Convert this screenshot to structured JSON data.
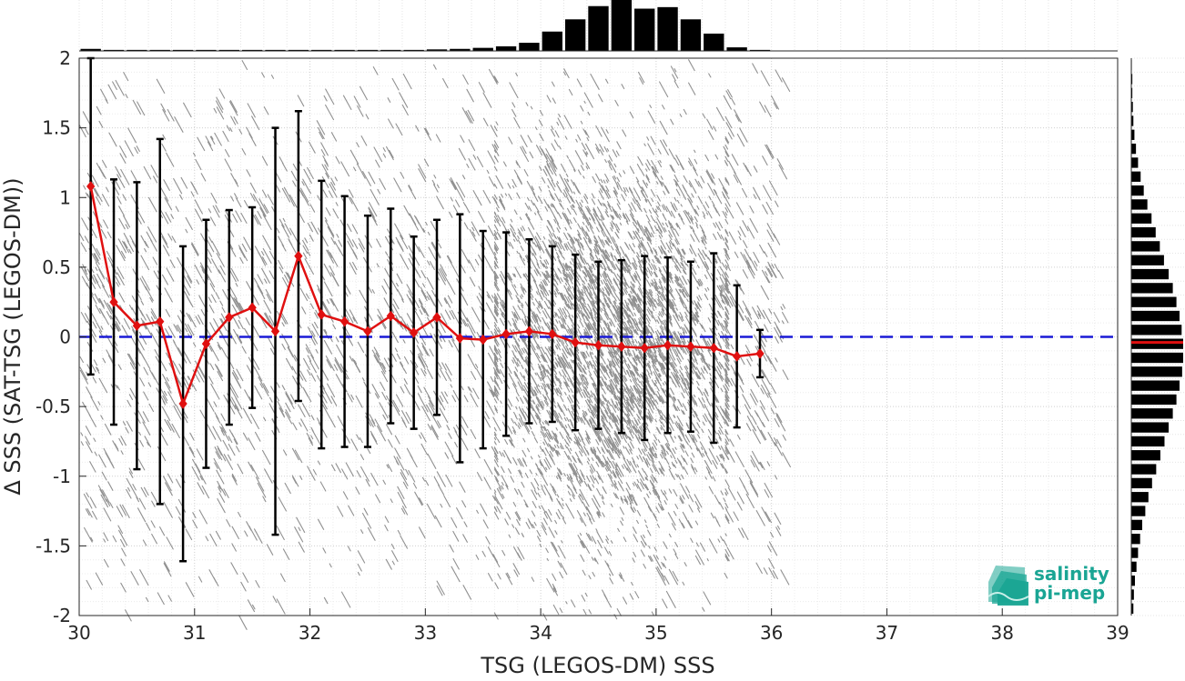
{
  "chart_data": {
    "type": "scatter",
    "xlabel": "TSG (LEGOS-DM) SSS",
    "ylabel": "Δ SSS (SAT-TSG (LEGOS-DM))",
    "xlim": [
      30,
      39
    ],
    "ylim": [
      -2,
      2
    ],
    "xticks": [
      30,
      31,
      32,
      33,
      34,
      35,
      36,
      37,
      38,
      39
    ],
    "yticks": [
      -2,
      -1.5,
      -1,
      -0.5,
      0,
      0.5,
      1,
      1.5,
      2
    ],
    "ytick_labels": [
      "-2",
      "-1.5",
      "-1",
      "-0.5",
      "0",
      "0.5",
      "1",
      "1.5",
      "2"
    ],
    "grid": true,
    "reference_line": {
      "y": 0,
      "style": "dashed",
      "color": "#1a1ad6"
    },
    "colors": {
      "scatter": "#858585",
      "mean_line": "#e01010",
      "error_bars": "#000000",
      "histogram": "#000000",
      "median_marker": "#e01010"
    },
    "binned_mean": {
      "x": [
        30.1,
        30.3,
        30.5,
        30.7,
        30.9,
        31.1,
        31.3,
        31.5,
        31.7,
        31.9,
        32.1,
        32.3,
        32.5,
        32.7,
        32.9,
        33.1,
        33.3,
        33.5,
        33.7,
        33.9,
        34.1,
        34.3,
        34.5,
        34.7,
        34.9,
        35.1,
        35.3,
        35.5,
        35.7,
        35.9
      ],
      "mean": [
        1.08,
        0.25,
        0.08,
        0.11,
        -0.48,
        -0.05,
        0.14,
        0.21,
        0.04,
        0.58,
        0.16,
        0.11,
        0.04,
        0.15,
        0.03,
        0.14,
        -0.01,
        -0.02,
        0.02,
        0.04,
        0.02,
        -0.04,
        -0.06,
        -0.07,
        -0.08,
        -0.06,
        -0.07,
        -0.08,
        -0.14,
        -0.12
      ],
      "std": [
        1.35,
        0.88,
        1.03,
        1.31,
        1.13,
        0.89,
        0.77,
        0.72,
        1.46,
        1.04,
        0.96,
        0.9,
        0.83,
        0.77,
        0.69,
        0.7,
        0.89,
        0.78,
        0.73,
        0.66,
        0.63,
        0.63,
        0.6,
        0.62,
        0.66,
        0.63,
        0.61,
        0.68,
        0.51,
        0.17
      ]
    },
    "x_histogram": {
      "bin_centers": [
        30.1,
        30.3,
        30.5,
        30.7,
        30.9,
        31.1,
        31.3,
        31.5,
        31.7,
        31.9,
        32.1,
        32.3,
        32.5,
        32.7,
        32.9,
        33.1,
        33.3,
        33.5,
        33.7,
        33.9,
        34.1,
        34.3,
        34.5,
        34.7,
        34.9,
        35.1,
        35.3,
        35.5,
        35.7,
        35.9
      ],
      "relative_counts": [
        0.04,
        0.02,
        0.02,
        0.02,
        0.02,
        0.02,
        0.02,
        0.02,
        0.02,
        0.02,
        0.02,
        0.02,
        0.02,
        0.02,
        0.02,
        0.03,
        0.04,
        0.06,
        0.09,
        0.16,
        0.38,
        0.62,
        0.88,
        1.0,
        0.83,
        0.86,
        0.62,
        0.34,
        0.07,
        0.02
      ]
    },
    "y_histogram": {
      "bin_centers": [
        -1.95,
        -1.85,
        -1.75,
        -1.65,
        -1.55,
        -1.45,
        -1.35,
        -1.25,
        -1.15,
        -1.05,
        -0.95,
        -0.85,
        -0.75,
        -0.65,
        -0.55,
        -0.45,
        -0.35,
        -0.25,
        -0.15,
        -0.05,
        0.05,
        0.15,
        0.25,
        0.35,
        0.45,
        0.55,
        0.65,
        0.75,
        0.85,
        0.95,
        1.05,
        1.15,
        1.25,
        1.35,
        1.45,
        1.55,
        1.65,
        1.75,
        1.85,
        1.95
      ],
      "relative_counts": [
        0.04,
        0.05,
        0.07,
        0.1,
        0.13,
        0.17,
        0.21,
        0.27,
        0.33,
        0.4,
        0.48,
        0.56,
        0.64,
        0.72,
        0.8,
        0.87,
        0.93,
        0.98,
        1.0,
        1.0,
        0.97,
        0.93,
        0.87,
        0.8,
        0.72,
        0.63,
        0.55,
        0.47,
        0.39,
        0.31,
        0.24,
        0.18,
        0.13,
        0.09,
        0.06,
        0.04,
        0.03,
        0.02,
        0.02,
        0.01
      ],
      "median": -0.04
    },
    "scatter_summary": {
      "dense_x_range": [
        33.6,
        35.6
      ],
      "sparse_x_range": [
        30,
        36.1
      ],
      "y_range": [
        -2,
        2
      ]
    }
  },
  "logo": {
    "line1": "salinity",
    "line2": "pi-mep",
    "color": "#1aa594"
  }
}
